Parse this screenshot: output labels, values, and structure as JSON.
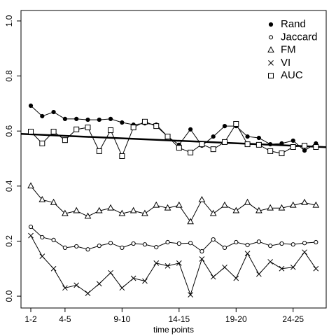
{
  "chart_data": {
    "type": "line",
    "x_label": "time points",
    "categories": [
      "1-2",
      null,
      null,
      "4-5",
      null,
      null,
      null,
      null,
      "9-10",
      null,
      null,
      null,
      null,
      "14-15",
      null,
      null,
      null,
      null,
      "19-20",
      null,
      null,
      null,
      null,
      "24-25",
      null,
      null
    ],
    "xlim": [
      0.14,
      26.9
    ],
    "ylim": [
      -0.043,
      1.038
    ],
    "yticks": [
      {
        "value": 0,
        "label": "0.0"
      },
      {
        "value": 0.2,
        "label": "0.2"
      },
      {
        "value": 0.4,
        "label": "0.4"
      },
      {
        "value": 0.6,
        "label": "0.6"
      },
      {
        "value": 0.8,
        "label": "0.8"
      },
      {
        "value": 1,
        "label": "1.0"
      }
    ],
    "legend": "top-right",
    "series": [
      {
        "name": "Rand",
        "marker": "filled-circle",
        "color": "#000000",
        "values": [
          0.692,
          0.654,
          0.669,
          0.644,
          0.644,
          0.641,
          0.641,
          0.644,
          0.631,
          0.623,
          0.628,
          0.623,
          0.58,
          0.55,
          0.606,
          0.547,
          0.58,
          0.618,
          0.618,
          0.58,
          0.575,
          0.552,
          0.555,
          0.565,
          0.529,
          0.555
        ]
      },
      {
        "name": "Jaccard",
        "marker": "circle",
        "color": "#000000",
        "values": [
          0.252,
          0.214,
          0.204,
          0.176,
          0.181,
          0.17,
          0.183,
          0.193,
          0.176,
          0.191,
          0.188,
          0.178,
          0.196,
          0.191,
          0.193,
          0.163,
          0.206,
          0.176,
          0.196,
          0.186,
          0.198,
          0.183,
          0.191,
          0.188,
          0.193,
          0.196
        ]
      },
      {
        "name": "FM",
        "marker": "triangle",
        "color": "#000000",
        "values": [
          0.4,
          0.35,
          0.34,
          0.3,
          0.31,
          0.29,
          0.31,
          0.32,
          0.3,
          0.31,
          0.3,
          0.33,
          0.32,
          0.33,
          0.27,
          0.35,
          0.3,
          0.33,
          0.31,
          0.34,
          0.31,
          0.32,
          0.32,
          0.33,
          0.34,
          0.33
        ]
      },
      {
        "name": "VI",
        "marker": "cross",
        "color": "#000000",
        "values": [
          0.22,
          0.145,
          0.1,
          0.03,
          0.04,
          0.01,
          0.045,
          0.085,
          0.03,
          0.065,
          0.055,
          0.12,
          0.11,
          0.12,
          0.005,
          0.135,
          0.07,
          0.105,
          0.065,
          0.155,
          0.08,
          0.125,
          0.1,
          0.105,
          0.16,
          0.1
        ]
      },
      {
        "name": "AUC",
        "marker": "square",
        "color": "#000000",
        "values": [
          0.598,
          0.555,
          0.598,
          0.567,
          0.606,
          0.613,
          0.527,
          0.603,
          0.509,
          0.613,
          0.634,
          0.618,
          0.58,
          0.539,
          0.522,
          0.552,
          0.534,
          0.56,
          0.626,
          0.552,
          0.55,
          0.527,
          0.519,
          0.542,
          0.547,
          0.542
        ]
      }
    ],
    "trend_line": {
      "intercept": 0.5898,
      "slope": -0.0018
    }
  }
}
